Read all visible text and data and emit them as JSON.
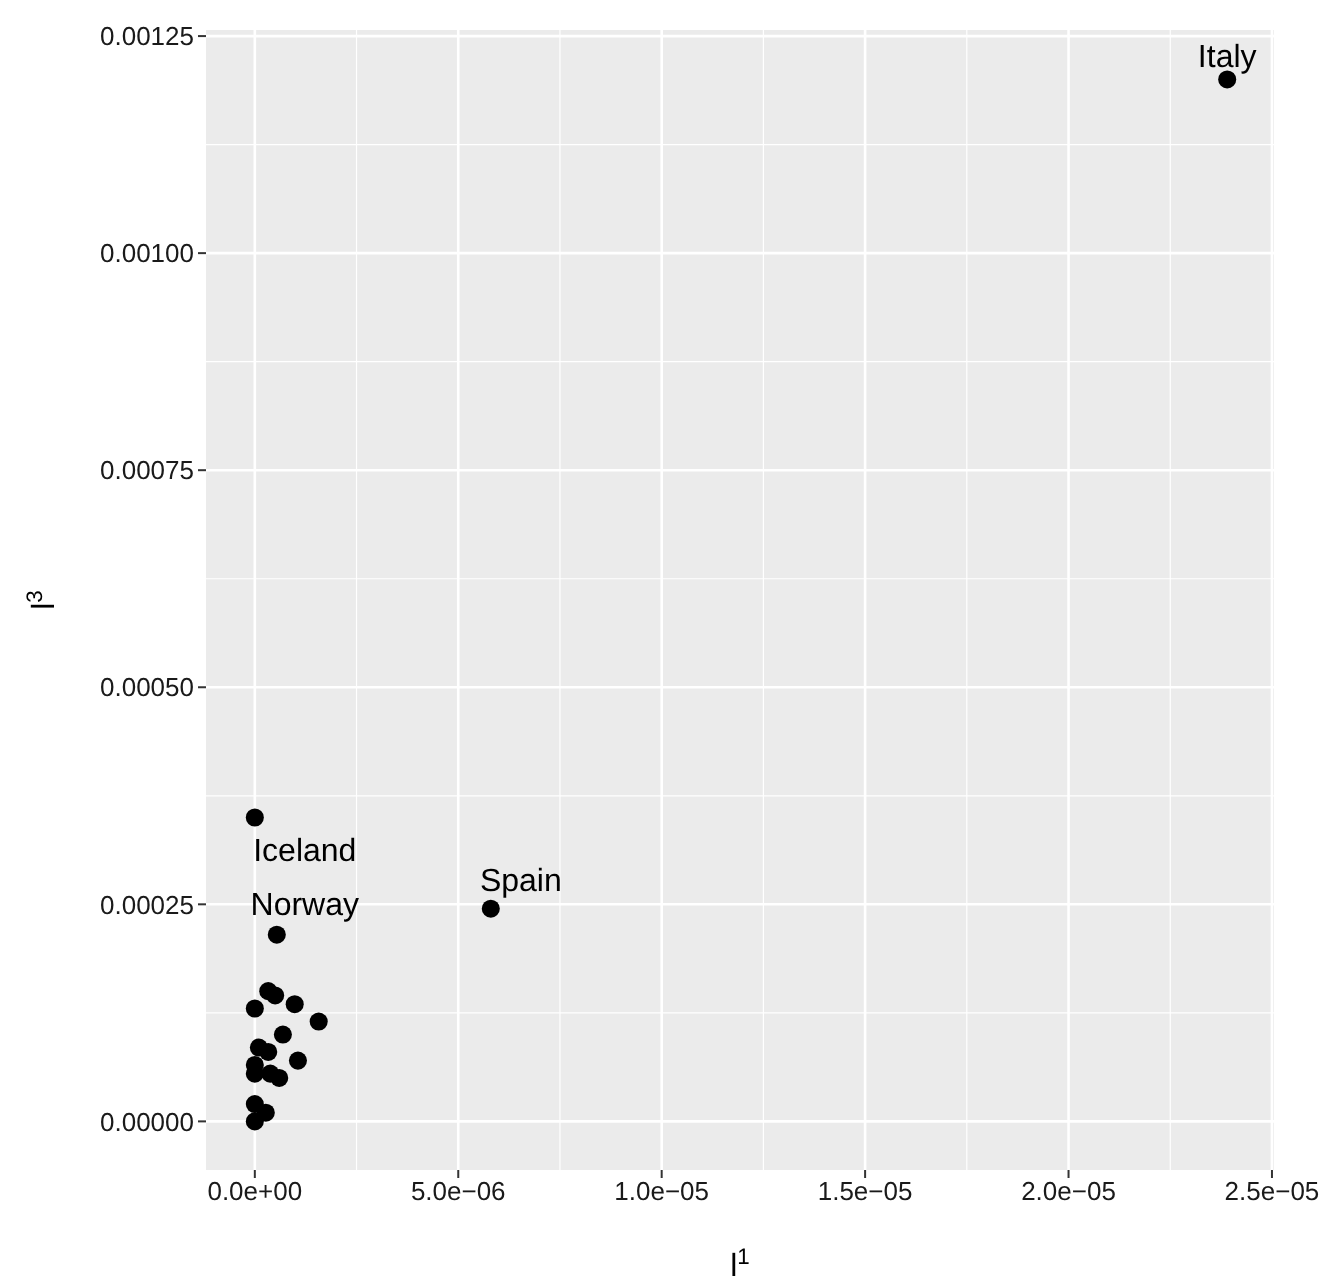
{
  "chart_data": {
    "type": "scatter",
    "xlabel": "l$^{1}$",
    "ylabel": "l$^{3}$",
    "x": [
      2.39e-05,
      5.8e-06,
      0,
      5.4e-07,
      0,
      3.3e-07,
      5e-07,
      9.8e-07,
      1.57e-06,
      6.9e-07,
      1e-07,
      3.3e-07,
      1.06e-06,
      0,
      0,
      3.8e-07,
      6e-07,
      0,
      2.7e-07,
      0
    ],
    "series": [
      {
        "color": "#000000",
        "values": [
          0.0012,
          0.000245,
          0.00035,
          0.000215,
          0.00013,
          0.00015,
          0.000145,
          0.000135,
          0.000115,
          0.0001,
          8.5e-05,
          8e-05,
          7e-05,
          6.5e-05,
          5.5e-05,
          5.5e-05,
          5e-05,
          2e-05,
          1e-05,
          0
        ]
      }
    ],
    "xlim": [
      -1.2e-06,
      2.505e-05
    ],
    "ylim": [
      -5.6e-05,
      0.001257
    ],
    "xticks": [
      {
        "value": 0,
        "label": "0.0e+00"
      },
      {
        "value": 5e-06,
        "label": "5.0e−06"
      },
      {
        "value": 1e-05,
        "label": "1.0e−05"
      },
      {
        "value": 1.5e-05,
        "label": "1.5e−05"
      },
      {
        "value": 2e-05,
        "label": "2.0e−05"
      },
      {
        "value": 2.5e-05,
        "label": "2.5e−05"
      }
    ],
    "yticks": [
      {
        "value": 0,
        "label": "0.00000"
      },
      {
        "value": 0.00025,
        "label": "0.00025"
      },
      {
        "value": 0.0005,
        "label": "0.00050"
      },
      {
        "value": 0.00075,
        "label": "0.00075"
      },
      {
        "value": 0.001,
        "label": "0.00100"
      },
      {
        "value": 0.00125,
        "label": "0.00125"
      }
    ],
    "annotations": [
      {
        "text": "Italy",
        "x": 2.39e-05,
        "y": 0.0012
      },
      {
        "text": "Spain",
        "x": 5.8e-06,
        "y": 0.000245
      },
      {
        "text": "Iceland",
        "x": 0,
        "y": 0.00035
      },
      {
        "text": "Norway",
        "x": 5.4e-07,
        "y": 0.000215
      }
    ],
    "grid": true,
    "marker": "circle"
  }
}
